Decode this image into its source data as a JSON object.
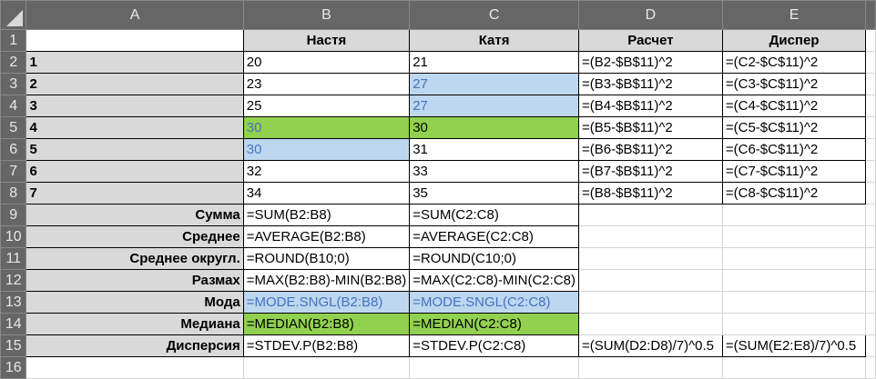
{
  "columns": [
    "A",
    "B",
    "C",
    "D",
    "E",
    ""
  ],
  "colors": {
    "header": "#666666",
    "gray_fill": "#d9d9d9",
    "green_fill": "#92d050",
    "blue_fill": "#bdd7ee",
    "blue_text": "#4472c4"
  },
  "rows": [
    {
      "n": "1",
      "cells": [
        {
          "t": "",
          "c": "b"
        },
        {
          "t": "Настя",
          "c": "b gray bold center"
        },
        {
          "t": "Катя",
          "c": "b gray bold center"
        },
        {
          "t": "Расчет",
          "c": "b gray bold center"
        },
        {
          "t": "Диспер",
          "c": "b gray bold center"
        },
        {
          "t": "",
          "c": ""
        }
      ]
    },
    {
      "n": "2",
      "cells": [
        {
          "t": "1",
          "c": "b gray bold"
        },
        {
          "t": "20",
          "c": "b"
        },
        {
          "t": "21",
          "c": "b"
        },
        {
          "t": "=(B2-$B$11)^2",
          "c": "b"
        },
        {
          "t": "=(C2-$C$11)^2",
          "c": "b"
        },
        {
          "t": "",
          "c": ""
        }
      ]
    },
    {
      "n": "3",
      "cells": [
        {
          "t": "2",
          "c": "b gray bold"
        },
        {
          "t": "23",
          "c": "b"
        },
        {
          "t": "27",
          "c": "b blue bt"
        },
        {
          "t": "=(B3-$B$11)^2",
          "c": "b"
        },
        {
          "t": "=(C3-$C$11)^2",
          "c": "b"
        },
        {
          "t": "",
          "c": ""
        }
      ]
    },
    {
      "n": "4",
      "cells": [
        {
          "t": "3",
          "c": "b gray bold"
        },
        {
          "t": "25",
          "c": "b"
        },
        {
          "t": "27",
          "c": "b blue bt"
        },
        {
          "t": "=(B4-$B$11)^2",
          "c": "b"
        },
        {
          "t": "=(C4-$C$11)^2",
          "c": "b"
        },
        {
          "t": "",
          "c": ""
        }
      ]
    },
    {
      "n": "5",
      "cells": [
        {
          "t": "4",
          "c": "b gray bold"
        },
        {
          "t": "30",
          "c": "b green bt"
        },
        {
          "t": "30",
          "c": "b green"
        },
        {
          "t": "=(B5-$B$11)^2",
          "c": "b"
        },
        {
          "t": "=(C5-$C$11)^2",
          "c": "b"
        },
        {
          "t": "",
          "c": ""
        }
      ]
    },
    {
      "n": "6",
      "cells": [
        {
          "t": "5",
          "c": "b gray bold"
        },
        {
          "t": "30",
          "c": "b blue bt"
        },
        {
          "t": "31",
          "c": "b"
        },
        {
          "t": "=(B6-$B$11)^2",
          "c": "b"
        },
        {
          "t": "=(C6-$C$11)^2",
          "c": "b"
        },
        {
          "t": "",
          "c": ""
        }
      ]
    },
    {
      "n": "7",
      "cells": [
        {
          "t": "6",
          "c": "b gray bold"
        },
        {
          "t": "32",
          "c": "b"
        },
        {
          "t": "33",
          "c": "b"
        },
        {
          "t": "=(B7-$B$11)^2",
          "c": "b"
        },
        {
          "t": "=(C7-$C$11)^2",
          "c": "b"
        },
        {
          "t": "",
          "c": ""
        }
      ]
    },
    {
      "n": "8",
      "cells": [
        {
          "t": "7",
          "c": "b gray bold"
        },
        {
          "t": "34",
          "c": "b"
        },
        {
          "t": "35",
          "c": "b"
        },
        {
          "t": "=(B8-$B$11)^2",
          "c": "b"
        },
        {
          "t": "=(C8-$C$11)^2",
          "c": "b"
        },
        {
          "t": "",
          "c": ""
        }
      ]
    },
    {
      "n": "9",
      "cells": [
        {
          "t": "Сумма",
          "c": "b gray bold right"
        },
        {
          "t": "=SUM(B2:B8)",
          "c": "b"
        },
        {
          "t": "=SUM(C2:C8)",
          "c": "b"
        },
        {
          "t": "",
          "c": ""
        },
        {
          "t": "",
          "c": ""
        },
        {
          "t": "",
          "c": ""
        }
      ]
    },
    {
      "n": "10",
      "cells": [
        {
          "t": "Среднее",
          "c": "b gray bold right"
        },
        {
          "t": "=AVERAGE(B2:B8)",
          "c": "b"
        },
        {
          "t": "=AVERAGE(C2:C8)",
          "c": "b"
        },
        {
          "t": "",
          "c": ""
        },
        {
          "t": "",
          "c": ""
        },
        {
          "t": "",
          "c": ""
        }
      ]
    },
    {
      "n": "11",
      "cells": [
        {
          "t": "Среднее округл.",
          "c": "b gray bold right"
        },
        {
          "t": "=ROUND(B10;0)",
          "c": "b"
        },
        {
          "t": "=ROUND(C10;0)",
          "c": "b"
        },
        {
          "t": "",
          "c": ""
        },
        {
          "t": "",
          "c": ""
        },
        {
          "t": "",
          "c": ""
        }
      ]
    },
    {
      "n": "12",
      "cells": [
        {
          "t": "Размах",
          "c": "b gray bold right"
        },
        {
          "t": "=MAX(B2:B8)-MIN(B2:B8)",
          "c": "b"
        },
        {
          "t": "=MAX(C2:C8)-MIN(C2:C8)",
          "c": "b"
        },
        {
          "t": "",
          "c": ""
        },
        {
          "t": "",
          "c": ""
        },
        {
          "t": "",
          "c": ""
        }
      ]
    },
    {
      "n": "13",
      "cells": [
        {
          "t": "Мода",
          "c": "b gray bold right"
        },
        {
          "t": "=MODE.SNGL(B2:B8)",
          "c": "b blue bt"
        },
        {
          "t": "=MODE.SNGL(C2:C8)",
          "c": "b blue bt"
        },
        {
          "t": "",
          "c": ""
        },
        {
          "t": "",
          "c": ""
        },
        {
          "t": "",
          "c": ""
        }
      ]
    },
    {
      "n": "14",
      "cells": [
        {
          "t": "Медиана",
          "c": "b gray bold right"
        },
        {
          "t": "=MEDIAN(B2:B8)",
          "c": "b green"
        },
        {
          "t": "=MEDIAN(C2:C8)",
          "c": "b green"
        },
        {
          "t": "",
          "c": ""
        },
        {
          "t": "",
          "c": ""
        },
        {
          "t": "",
          "c": ""
        }
      ]
    },
    {
      "n": "15",
      "cells": [
        {
          "t": "Дисперсия",
          "c": "b gray bold right"
        },
        {
          "t": "=STDEV.P(B2:B8)",
          "c": "b"
        },
        {
          "t": "=STDEV.P(C2:C8)",
          "c": "b"
        },
        {
          "t": "=(SUM(D2:D8)/7)^0.5",
          "c": "b"
        },
        {
          "t": "=(SUM(E2:E8)/7)^0.5",
          "c": "b"
        },
        {
          "t": "",
          "c": ""
        }
      ]
    },
    {
      "n": "16",
      "cells": [
        {
          "t": "",
          "c": ""
        },
        {
          "t": "",
          "c": ""
        },
        {
          "t": "",
          "c": ""
        },
        {
          "t": "",
          "c": ""
        },
        {
          "t": "",
          "c": ""
        },
        {
          "t": "",
          "c": ""
        }
      ]
    }
  ]
}
